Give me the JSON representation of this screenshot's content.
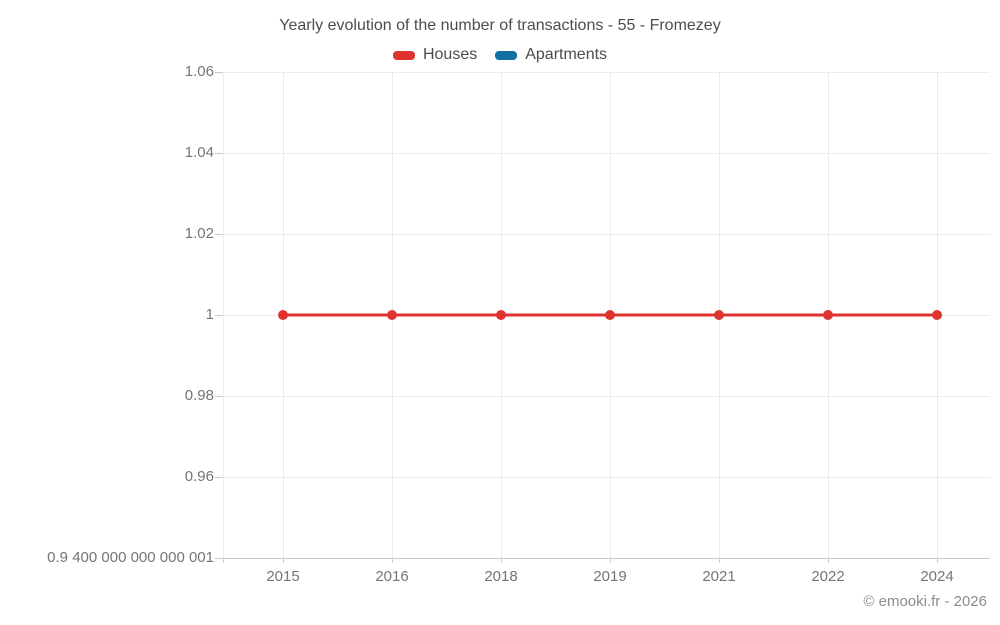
{
  "title": "Yearly evolution of the number of transactions - 55 - Fromezey",
  "footer": {
    "copyright": "© emooki.fr - 2026"
  },
  "colors": {
    "houses": "#df332f",
    "apartments": "#1070a1",
    "grid": "#ebebeb",
    "axis": "#c9c9c9",
    "text": "#4d4d4d",
    "tick_text": "#757575"
  },
  "chart_data": {
    "type": "line",
    "title": "Yearly evolution of the number of transactions - 55 - Fromezey",
    "categories": [
      "2015",
      "2016",
      "2018",
      "2019",
      "2021",
      "2022",
      "2024"
    ],
    "series": [
      {
        "name": "Houses",
        "color": "#df332f",
        "values": [
          1,
          1,
          1,
          1,
          1,
          1,
          1
        ]
      },
      {
        "name": "Apartments",
        "color": "#1070a1",
        "values": []
      }
    ],
    "xlabel": "",
    "ylabel": "",
    "ylim": [
      0.94,
      1.06
    ],
    "ytick_values": [
      1.06,
      1.04,
      1.02,
      1,
      0.98,
      0.96,
      0.94
    ],
    "ytick_labels": [
      "1.06",
      "1.04",
      "1.02",
      "1",
      "0.98",
      "0.96",
      "0.9 400 000 000 000 001"
    ],
    "grid": true,
    "legend_position": "top"
  }
}
